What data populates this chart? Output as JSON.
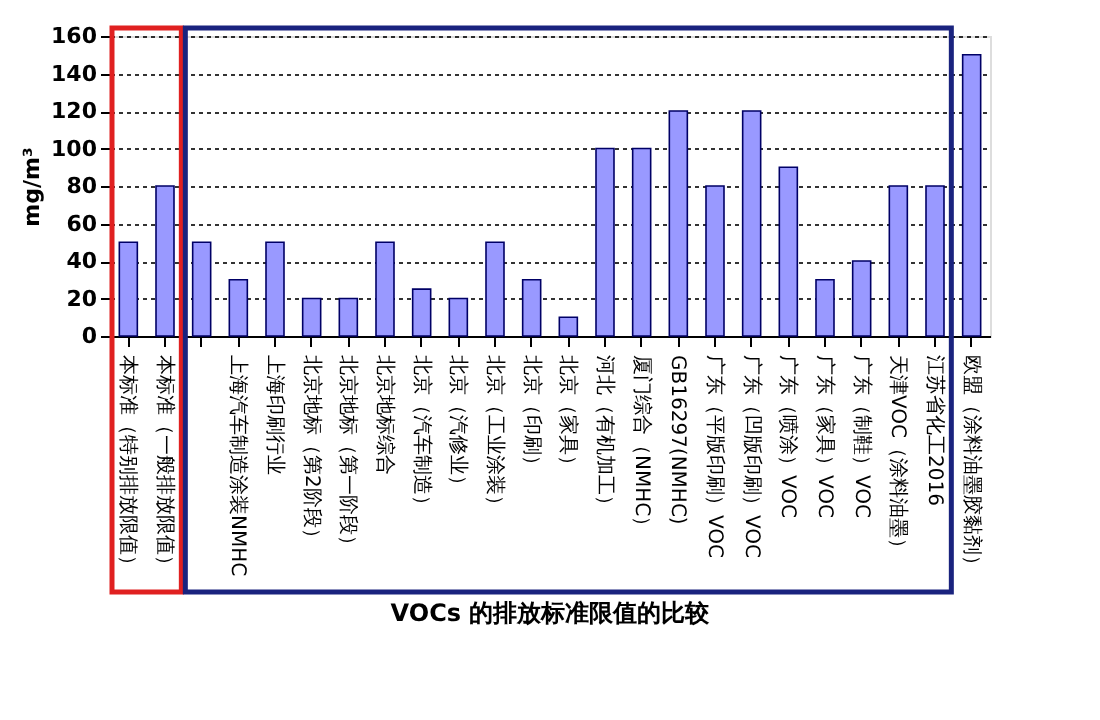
{
  "chart_data": {
    "type": "bar",
    "title": "VOCs 的排放标准限值的比较",
    "ylabel": "mg/m³",
    "categories": [
      "本标准（特别排放限值）",
      "本标准（一般排放限值）",
      null,
      "上海汽车制造涂装NMHC",
      "上海印刷行业",
      "北京地标（第2阶段）",
      "北京地标（第一阶段）",
      "北京地标综合",
      "北京（汽车制造）",
      "北京（汽修业）",
      "北京（工业涂装）",
      "北京（印刷）",
      "北京（家具）",
      "河北（有机加工）",
      "厦门综合（NMHC）",
      "GB16297(NMHC)",
      "广东（平版印刷）VOC",
      "广东（凹版印刷）VOC",
      "广东（喷涂）VOC",
      "广东（家具）VOC",
      "广东（制鞋）VOC",
      "天津VOC（涂料油墨）",
      "江苏省化工2016",
      "欧盟（涂料油墨胶黏剂）"
    ],
    "values": [
      50,
      80,
      50,
      30,
      50,
      20,
      20,
      50,
      25,
      20,
      50,
      30,
      10,
      100,
      100,
      120,
      80,
      120,
      90,
      30,
      40,
      80,
      80,
      150
    ],
    "color": "#9999ff",
    "ylim": [
      0,
      160
    ],
    "yticks": [
      0,
      20,
      40,
      60,
      80,
      100,
      120,
      140,
      160
    ],
    "grid": "y"
  }
}
